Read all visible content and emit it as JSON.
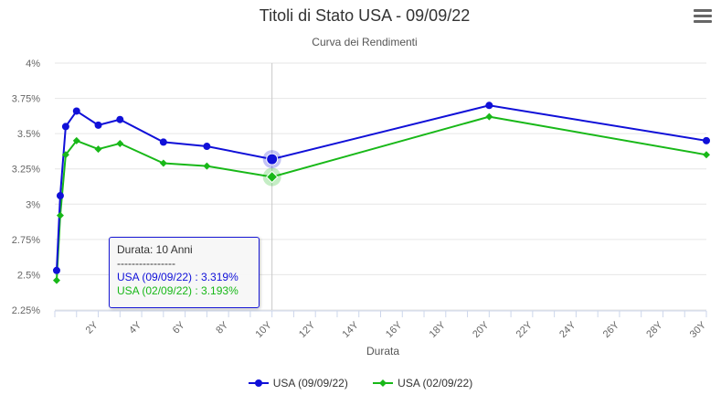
{
  "title": "Titoli di Stato USA - 09/09/22",
  "subtitle": "Curva dei Rendimenti",
  "chart_data": {
    "type": "line",
    "title": "Titoli di Stato USA - 09/09/22",
    "subtitle": "Curva dei Rendimenti",
    "xlabel": "Durata",
    "ylabel": "",
    "xlim": [
      0,
      30
    ],
    "ylim": [
      2.25,
      4
    ],
    "x_ticks": [
      2,
      4,
      6,
      8,
      10,
      12,
      14,
      16,
      18,
      20,
      22,
      24,
      26,
      28,
      30
    ],
    "x_tick_labels": [
      "2Y",
      "4Y",
      "6Y",
      "8Y",
      "10Y",
      "12Y",
      "14Y",
      "16Y",
      "18Y",
      "20Y",
      "22Y",
      "24Y",
      "26Y",
      "28Y",
      "30Y"
    ],
    "y_ticks": [
      2.25,
      2.5,
      2.75,
      3,
      3.25,
      3.5,
      3.75,
      4
    ],
    "y_tick_labels": [
      "2.25%",
      "2.5%",
      "2.75%",
      "3%",
      "3.25%",
      "3.5%",
      "3.75%",
      "4%"
    ],
    "grid": true,
    "legend": "bottom",
    "x": [
      0.083,
      0.25,
      0.5,
      1,
      2,
      3,
      5,
      7,
      10,
      20,
      30
    ],
    "series": [
      {
        "name": "USA (09/09/22)",
        "color": "#1010d8",
        "marker": "circle",
        "values": [
          2.53,
          3.06,
          3.55,
          3.66,
          3.56,
          3.6,
          3.44,
          3.41,
          3.319,
          3.7,
          3.45
        ]
      },
      {
        "name": "USA (02/09/22)",
        "color": "#18b818",
        "marker": "diamond",
        "values": [
          2.46,
          2.92,
          3.35,
          3.45,
          3.39,
          3.43,
          3.29,
          3.27,
          3.193,
          3.62,
          3.35
        ]
      }
    ],
    "highlight_x": 10
  },
  "tooltip": {
    "header": "Durata: 10 Anni",
    "separator": "----------------",
    "line1": "USA (09/09/22) : 3.319%",
    "line2": "USA (02/09/22) : 3.193%"
  },
  "menu_icon": "hamburger-menu-icon"
}
